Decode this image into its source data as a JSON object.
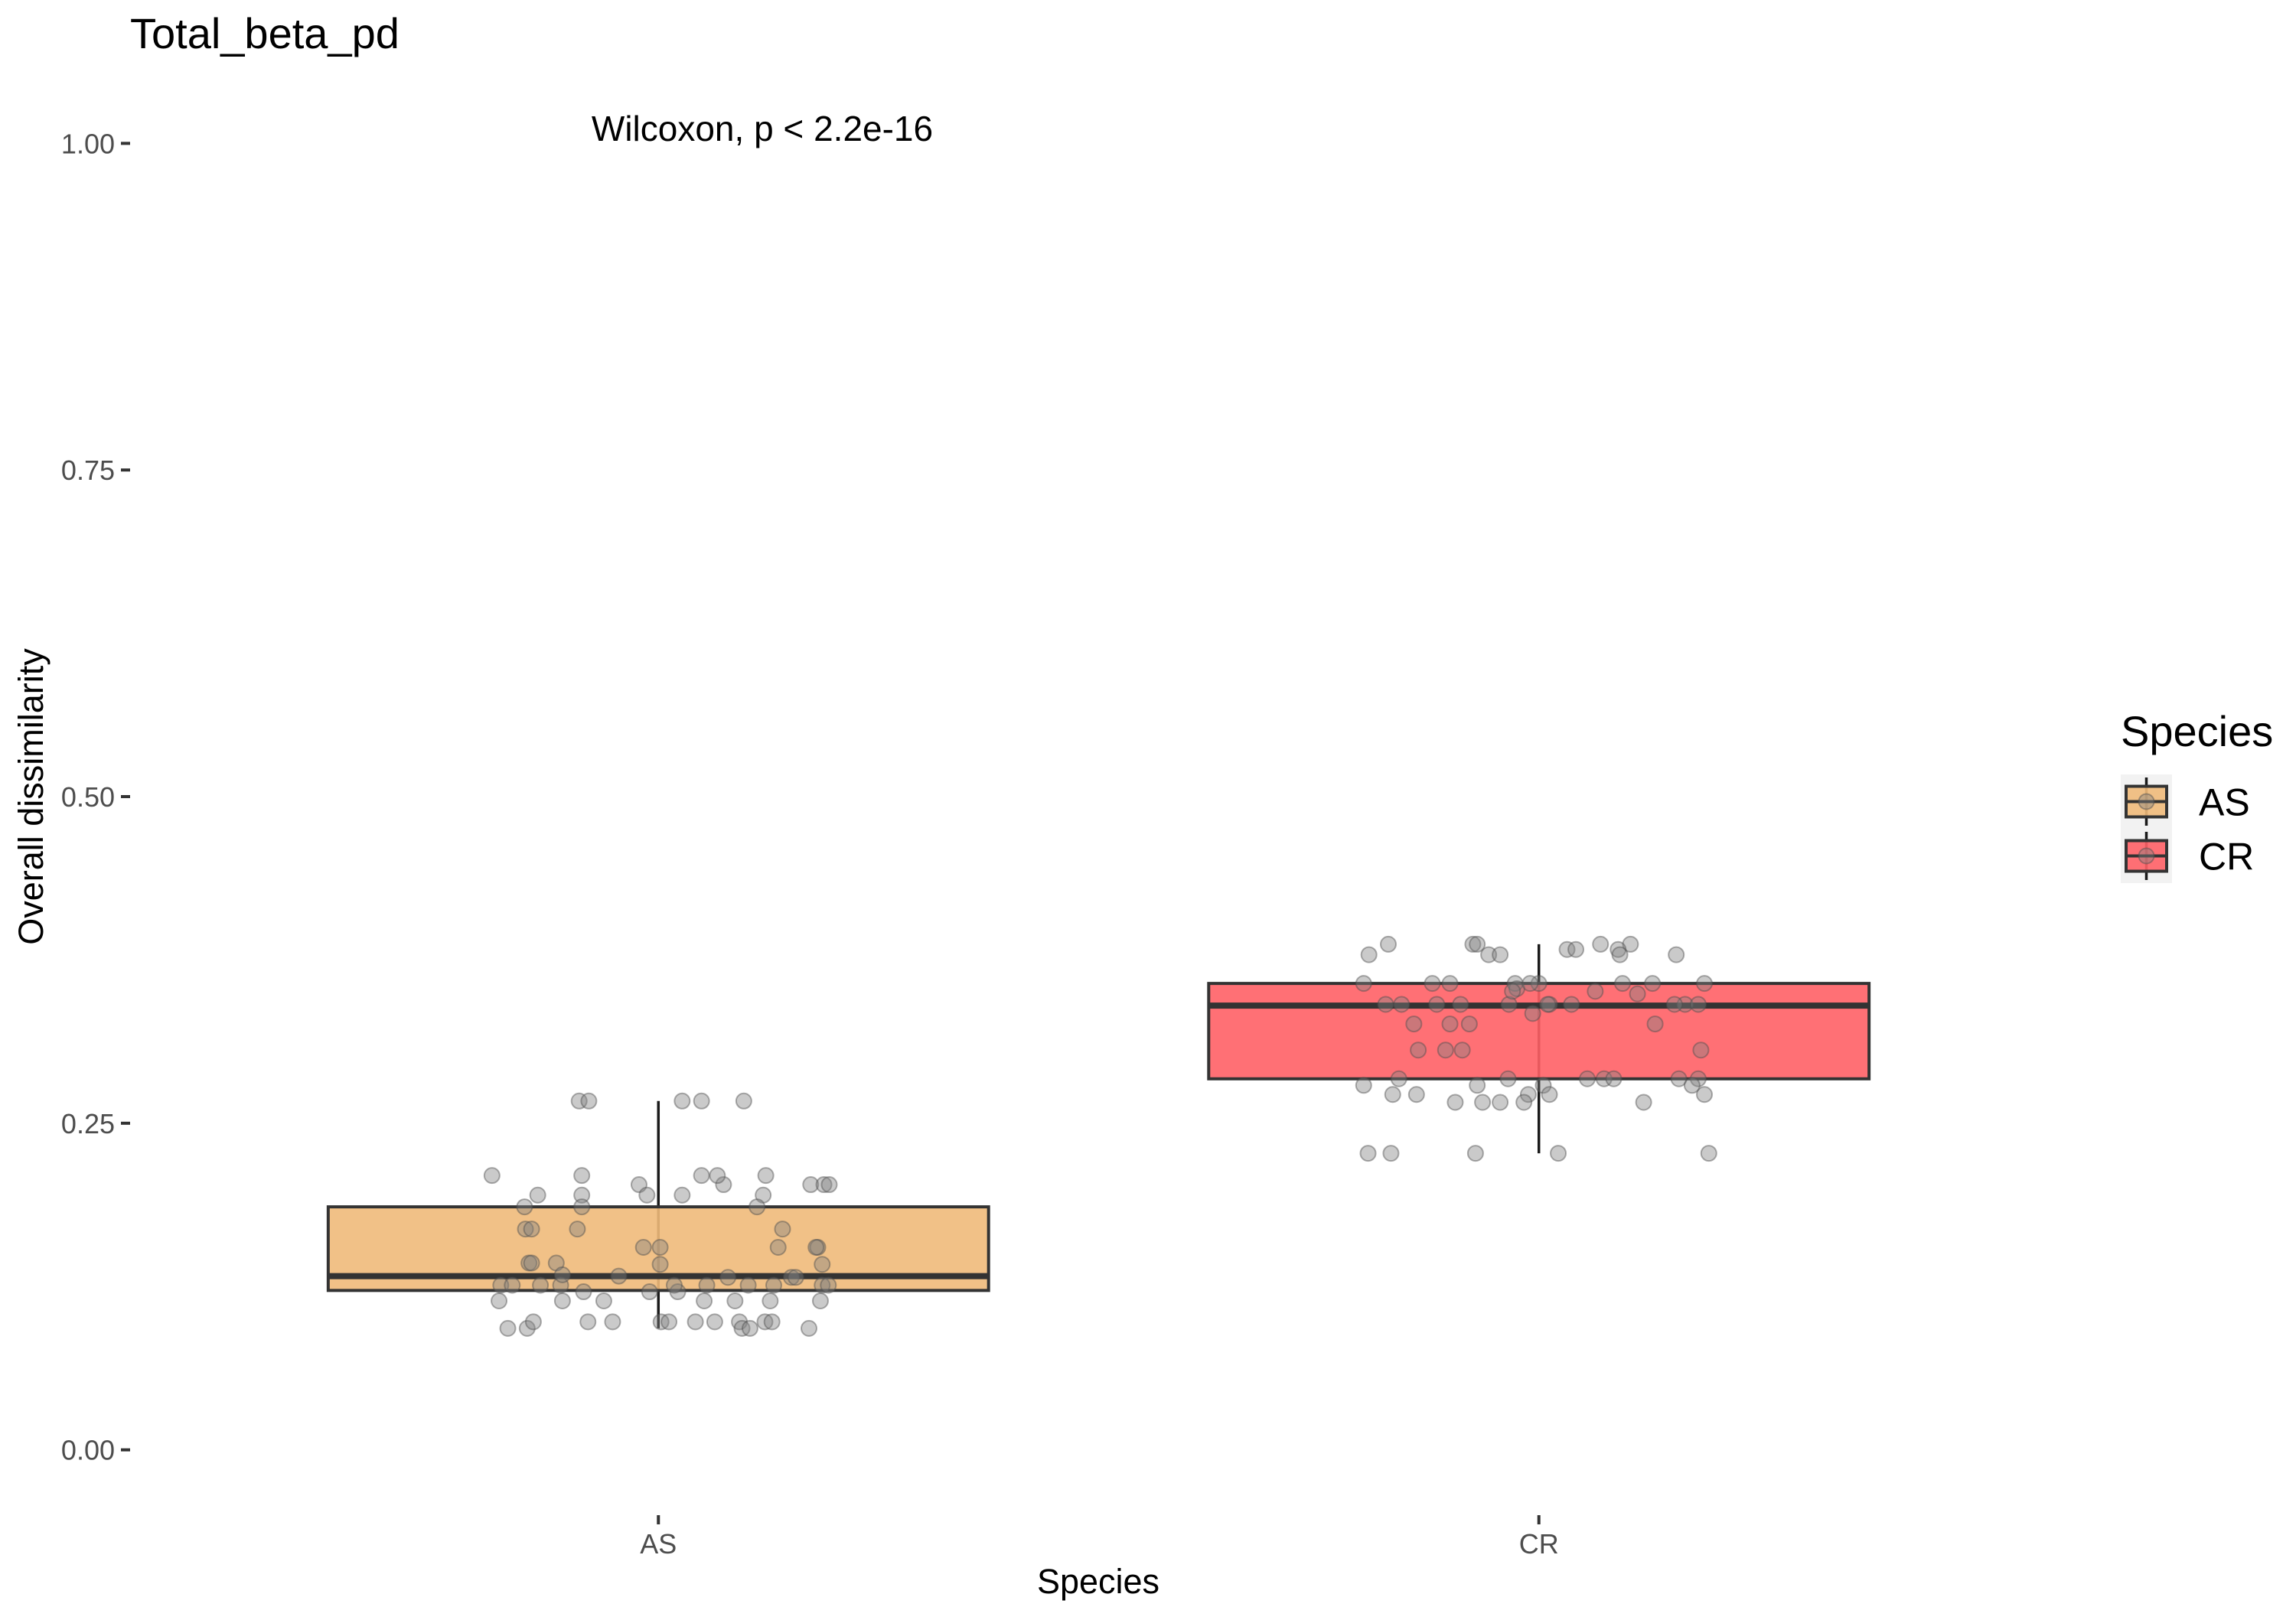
{
  "chart_data": {
    "type": "boxplot",
    "title": "Total_beta_pd",
    "xlabel": "Species",
    "ylabel": "Overall dissimilarity",
    "categories": [
      "AS",
      "CR"
    ],
    "ylim": [
      0,
      1
    ],
    "y_ticks": [
      0,
      0.25,
      0.5,
      0.75,
      1
    ],
    "y_tick_labels": [
      "0.00",
      "0.25",
      "0.50",
      "0.75",
      "1.00"
    ],
    "grid": false,
    "legend": {
      "title": "Species",
      "position": "right",
      "entries": [
        "AS",
        "CR"
      ]
    },
    "annotations": [
      {
        "text": "Wilcoxon, p < 2.2e-16"
      }
    ],
    "point_color": "#808080",
    "series": [
      {
        "name": "AS",
        "color": "#F0BA7A",
        "box": {
          "min": 0.093,
          "q1": 0.122,
          "median": 0.133,
          "q3": 0.186,
          "max": 0.267
        },
        "points": [
          0.21,
          0.195,
          0.21,
          0.195,
          0.186,
          0.186,
          0.203,
          0.195,
          0.195,
          0.203,
          0.21,
          0.21,
          0.21,
          0.195,
          0.186,
          0.267,
          0.267,
          0.267,
          0.267,
          0.267,
          0.169,
          0.169,
          0.169,
          0.169,
          0.143,
          0.143,
          0.143,
          0.155,
          0.155,
          0.142,
          0.155,
          0.155,
          0.142,
          0.155,
          0.126,
          0.126,
          0.126,
          0.126,
          0.134,
          0.121,
          0.133,
          0.121,
          0.121,
          0.126,
          0.126,
          0.132,
          0.126,
          0.126,
          0.132,
          0.132,
          0.126,
          0.126,
          0.114,
          0.114,
          0.114,
          0.114,
          0.114,
          0.114,
          0.114,
          0.093,
          0.093,
          0.098,
          0.098,
          0.098,
          0.098,
          0.098,
          0.098,
          0.098,
          0.098,
          0.093,
          0.093,
          0.098,
          0.098,
          0.093,
          0.203,
          0.203,
          0.203
        ]
      },
      {
        "name": "CR",
        "color": "#FF6166",
        "box": {
          "min": 0.227,
          "q1": 0.284,
          "median": 0.34,
          "q3": 0.357,
          "max": 0.387
        },
        "points": [
          0.387,
          0.387,
          0.387,
          0.387,
          0.387,
          0.379,
          0.379,
          0.379,
          0.383,
          0.383,
          0.383,
          0.379,
          0.379,
          0.357,
          0.357,
          0.357,
          0.357,
          0.357,
          0.353,
          0.357,
          0.357,
          0.357,
          0.341,
          0.341,
          0.341,
          0.341,
          0.341,
          0.351,
          0.341,
          0.351,
          0.349,
          0.341,
          0.341,
          0.341,
          0.326,
          0.326,
          0.326,
          0.334,
          0.341,
          0.326,
          0.306,
          0.306,
          0.306,
          0.306,
          0.284,
          0.284,
          0.284,
          0.284,
          0.284,
          0.284,
          0.284,
          0.279,
          0.272,
          0.272,
          0.279,
          0.272,
          0.279,
          0.272,
          0.272,
          0.266,
          0.266,
          0.266,
          0.266,
          0.266,
          0.227,
          0.227,
          0.227,
          0.227,
          0.227,
          0.341,
          0.279,
          0.357
        ]
      }
    ]
  }
}
